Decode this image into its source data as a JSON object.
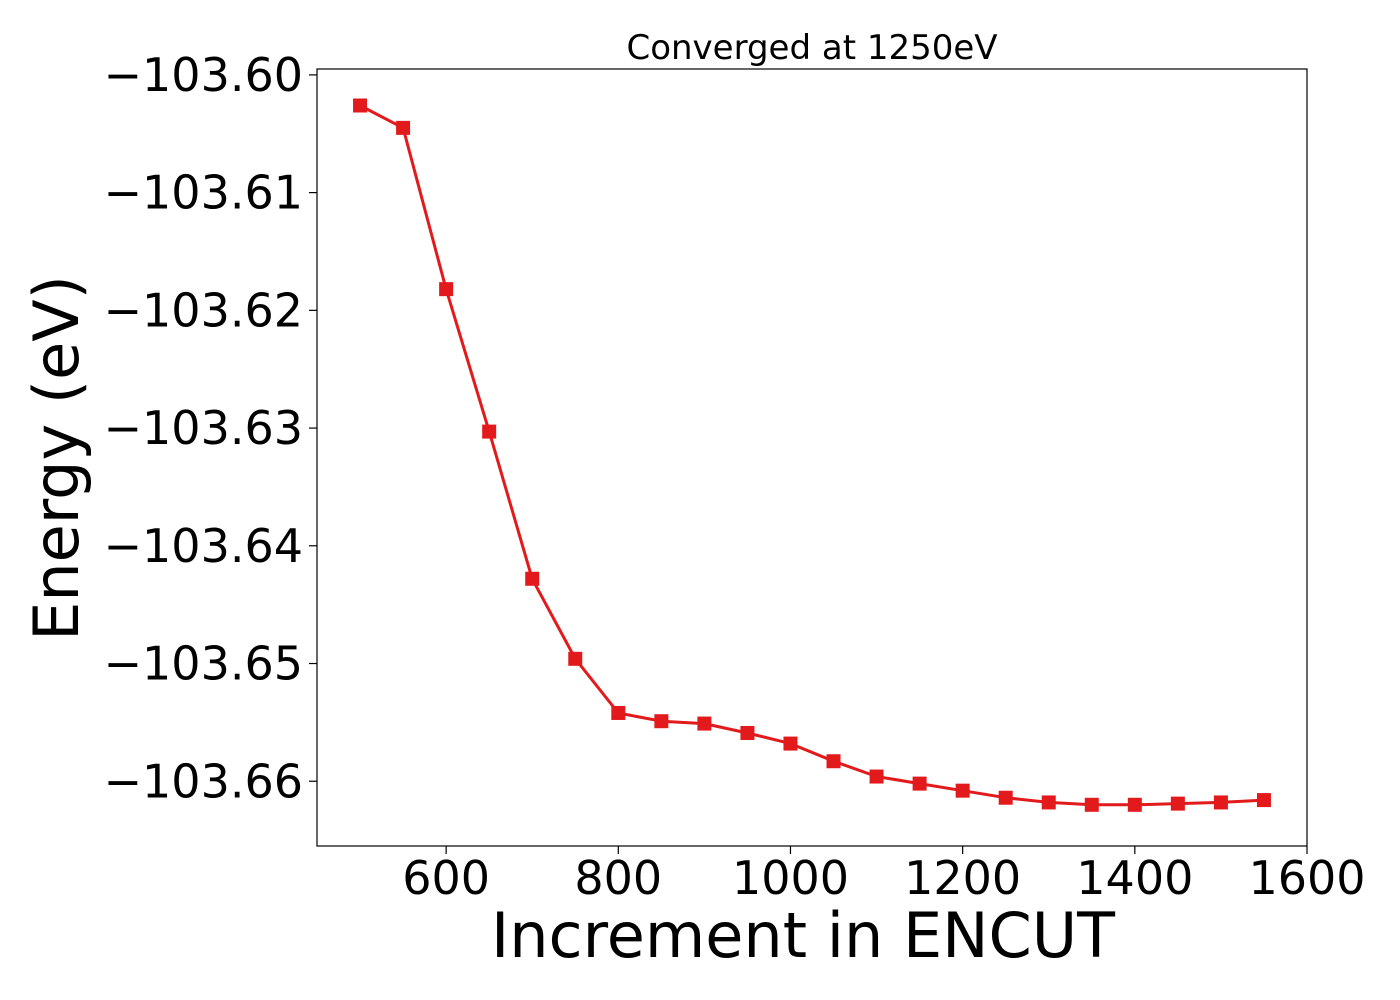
{
  "chart_data": {
    "type": "line",
    "title": "Converged at 1250eV",
    "xlabel": "Increment in ENCUT",
    "ylabel": "Energy (eV)",
    "xlim": [
      450,
      1600
    ],
    "ylim": [
      -103.6655,
      -103.5995
    ],
    "x_ticks": [
      600,
      800,
      1000,
      1200,
      1400,
      1600
    ],
    "x_tick_labels": [
      "600",
      "800",
      "1000",
      "1200",
      "1400",
      "1600"
    ],
    "y_ticks": [
      -103.6,
      -103.61,
      -103.62,
      -103.63,
      -103.64,
      -103.65,
      -103.66
    ],
    "y_tick_labels": [
      "−103.60",
      "−103.61",
      "−103.62",
      "−103.63",
      "−103.64",
      "−103.65",
      "−103.66"
    ],
    "grid": false,
    "marker": "square",
    "color": "#e31a1c",
    "series": [
      {
        "x": [
          500,
          550,
          600,
          650,
          700,
          750,
          800,
          850,
          900,
          950,
          1000,
          1050,
          1100,
          1150,
          1200,
          1250,
          1300,
          1350,
          1400,
          1450,
          1500,
          1550
        ],
        "y": [
          -103.6026,
          -103.6045,
          -103.6182,
          -103.6303,
          -103.6428,
          -103.6496,
          -103.6542,
          -103.6549,
          -103.6551,
          -103.6559,
          -103.6568,
          -103.6583,
          -103.6596,
          -103.6602,
          -103.6608,
          -103.6614,
          -103.6618,
          -103.662,
          -103.662,
          -103.6619,
          -103.6618,
          -103.6616
        ]
      }
    ]
  }
}
